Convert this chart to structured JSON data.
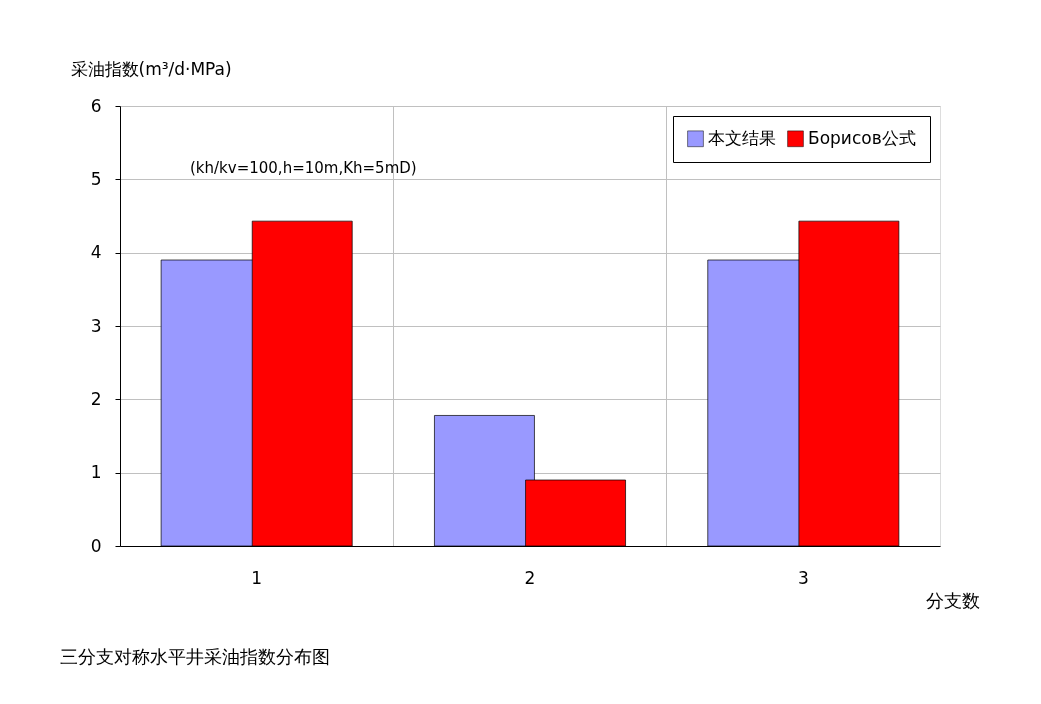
{
  "chart_data": {
    "type": "bar",
    "ylabel": "采油指数(m³/d·MPa)",
    "xlabel": "分支数",
    "categories": [
      "1",
      "2",
      "3"
    ],
    "series": [
      {
        "name": "本文结果",
        "color": "#9999ff",
        "values": [
          3.9,
          1.78,
          3.9
        ]
      },
      {
        "name": "Борисов公式",
        "color": "#ff0000",
        "values": [
          4.43,
          0.9,
          4.43
        ]
      }
    ],
    "ylim": [
      0,
      6
    ],
    "yticks": [
      0,
      1,
      2,
      3,
      4,
      5,
      6
    ],
    "grid": true,
    "legend": "top right",
    "annotations": [
      "(kh/kv=100,h=10m,Kh=5mD)",
      "三分支对称水平井采油指数分布图"
    ]
  }
}
